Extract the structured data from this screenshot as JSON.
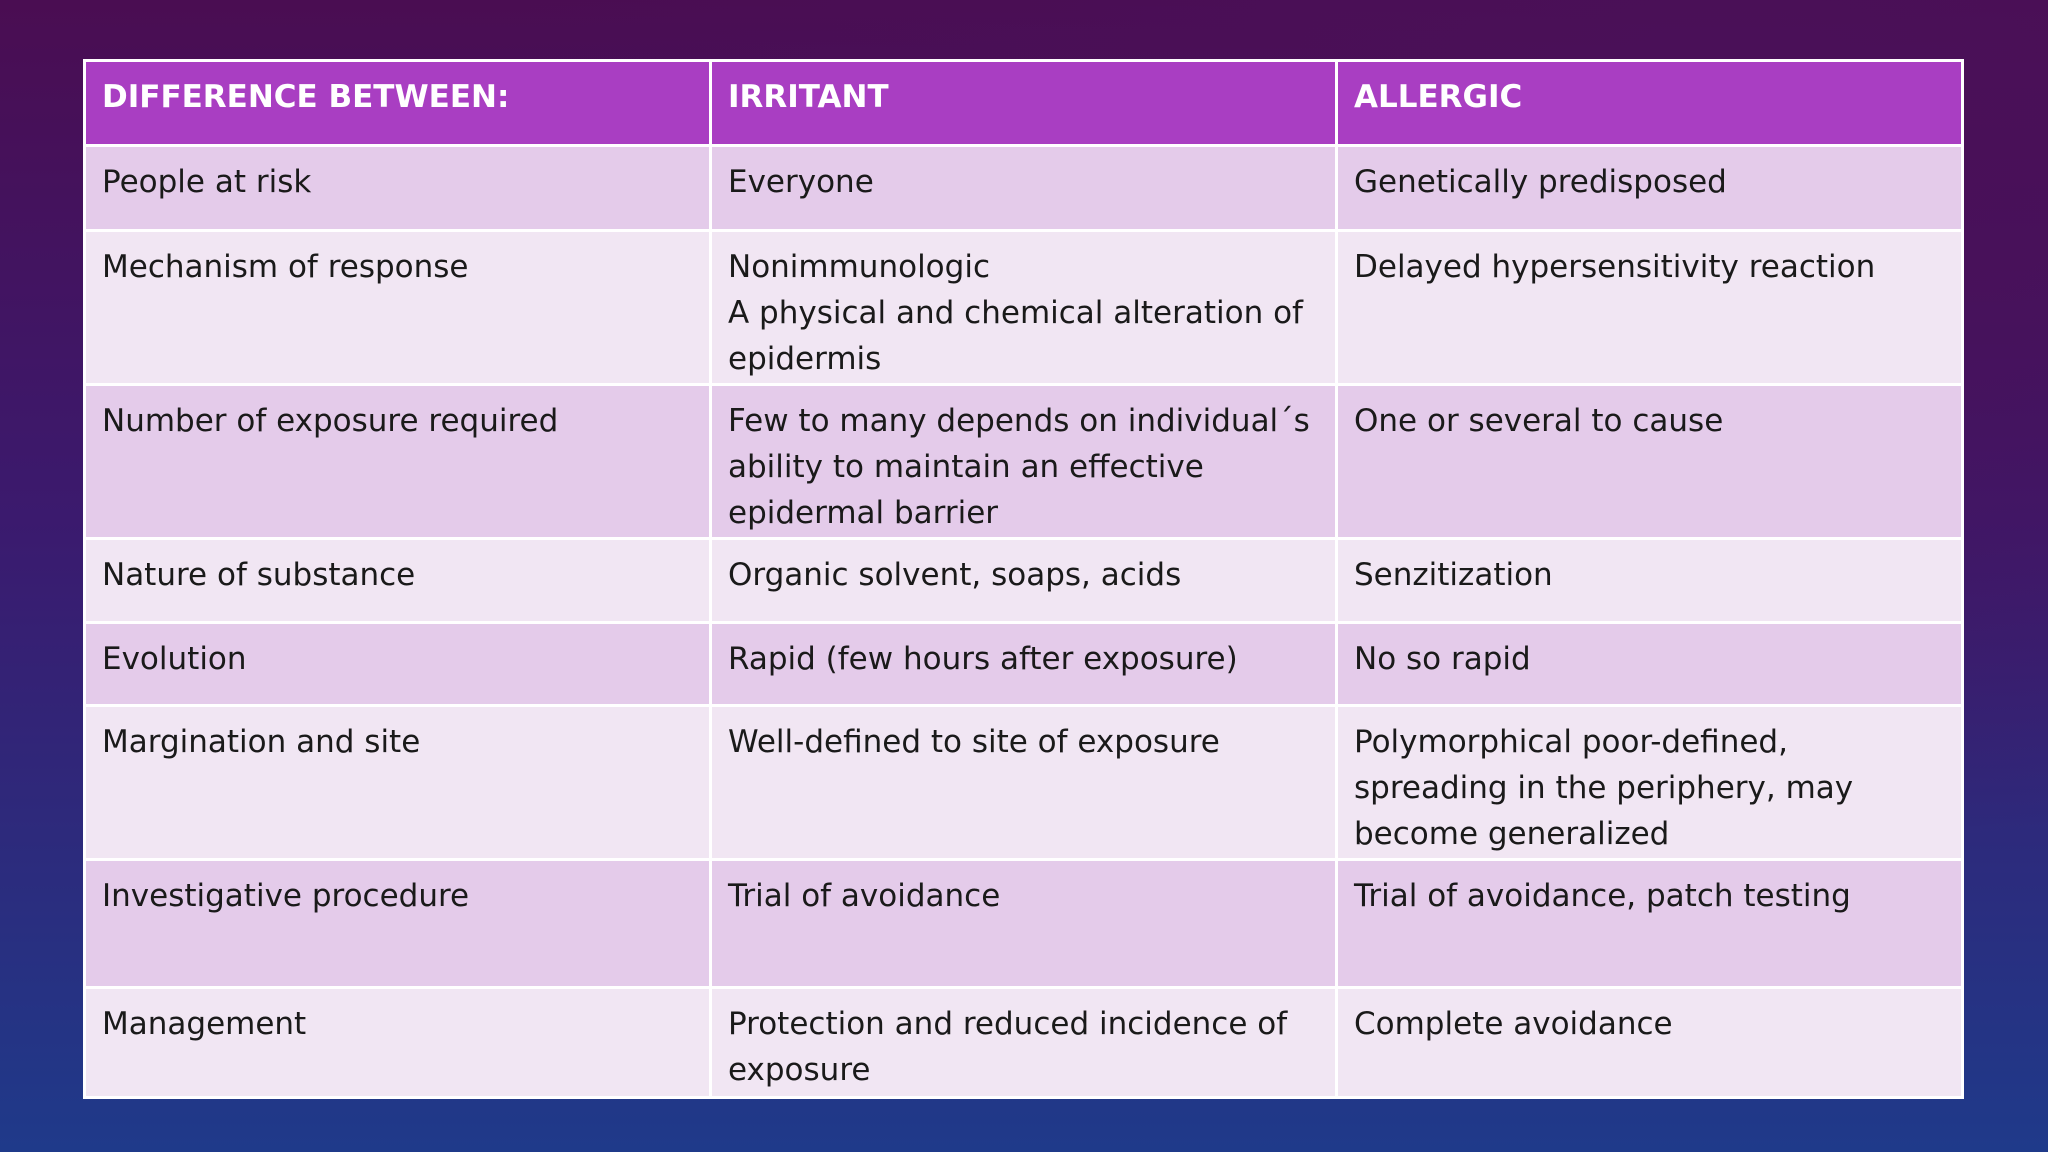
{
  "table": {
    "header": [
      "DIFFERENCE BETWEEN:",
      "IRRITANT",
      "ALLERGIC"
    ],
    "rows": [
      [
        "People at risk",
        "Everyone",
        "Genetically predisposed"
      ],
      [
        "Mechanism of response",
        "Nonimmunologic\nA physical and chemical alteration of epidermis",
        "Delayed hypersensitivity reaction"
      ],
      [
        "Number of exposure required",
        "Few to many depends on individual´s ability to maintain an effective epidermal barrier",
        "One or several to cause"
      ],
      [
        "Nature of substance",
        "Organic solvent, soaps, acids",
        "Senzitization"
      ],
      [
        "Evolution",
        "Rapid (few hours after exposure)",
        "No so rapid"
      ],
      [
        "Margination and site",
        "Well-defined to site of exposure",
        "Polymorphical poor-defined, spreading in the periphery, may become generalized"
      ],
      [
        "Investigative procedure",
        "Trial of avoidance",
        "Trial of avoidance, patch testing"
      ],
      [
        "Management",
        "Protection and reduced incidence of exposure",
        "Complete avoidance"
      ]
    ]
  }
}
